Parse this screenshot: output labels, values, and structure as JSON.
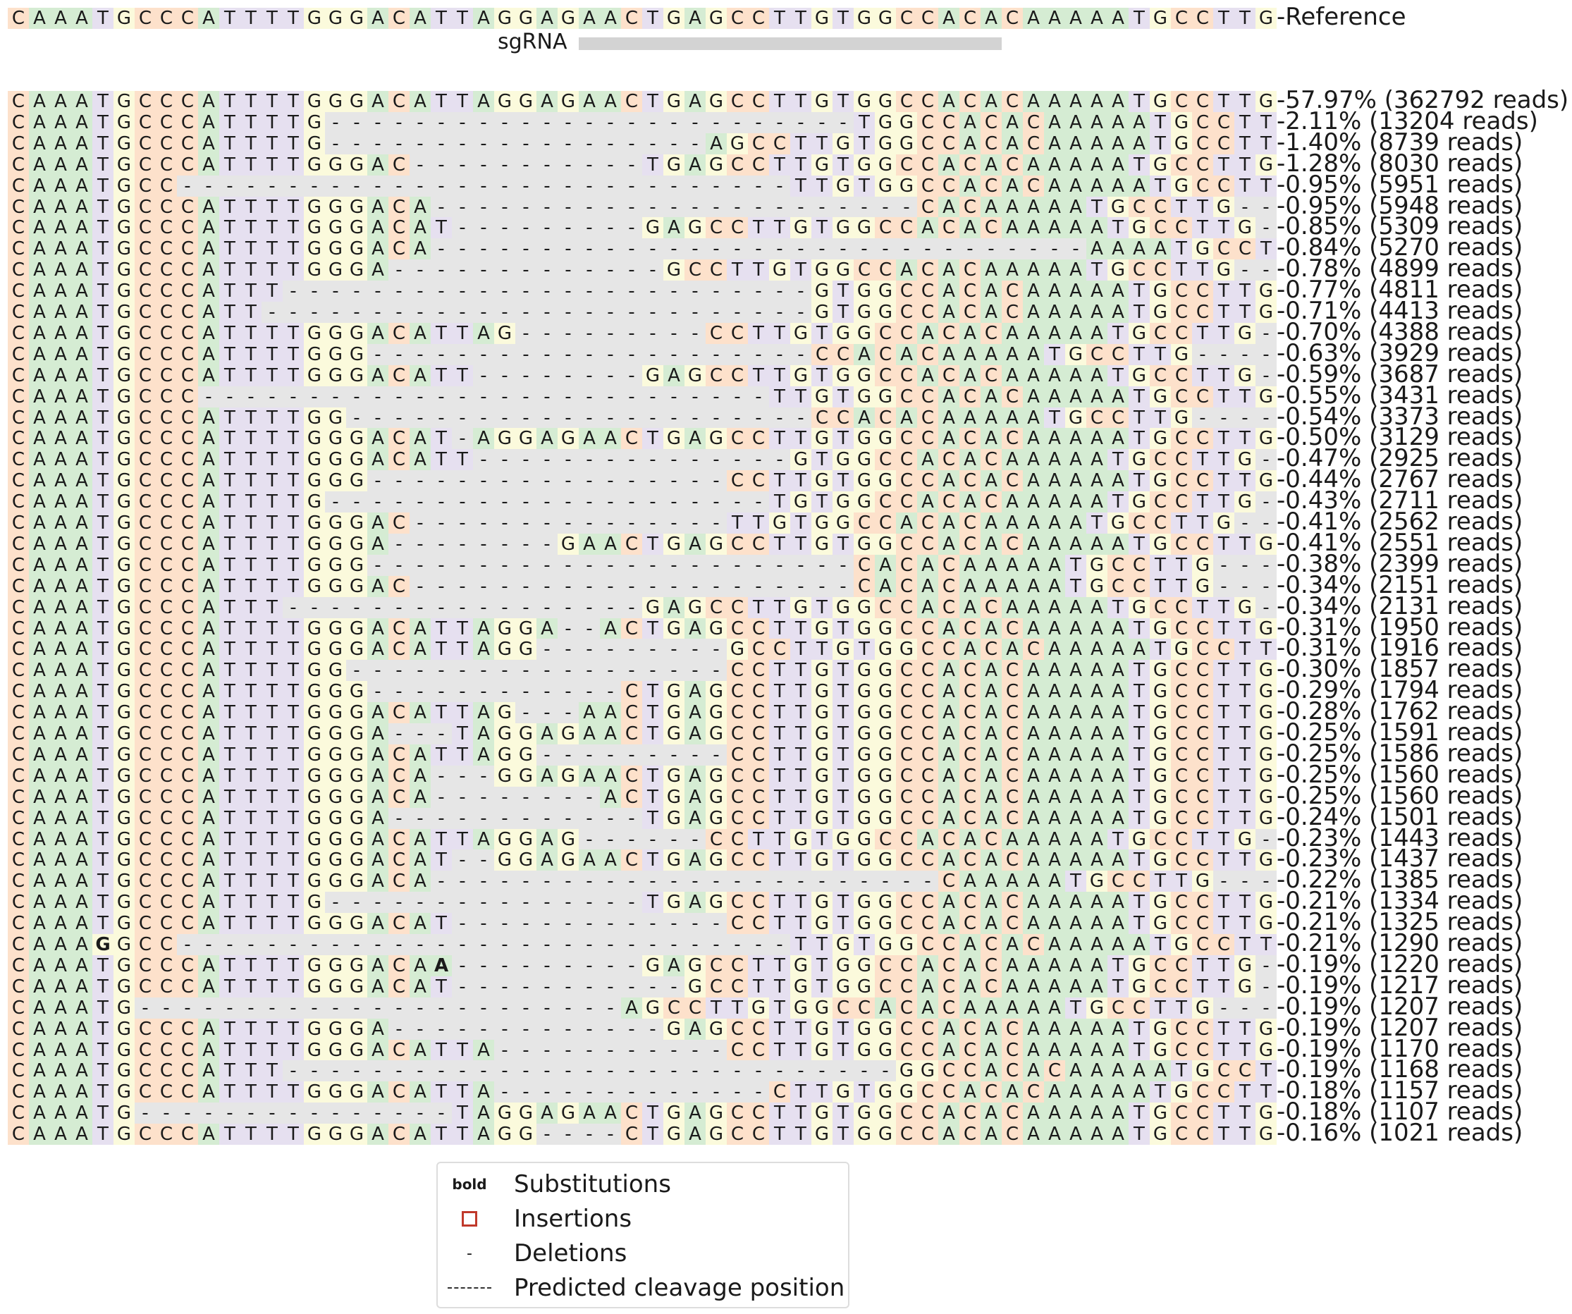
{
  "colors": {
    "A": "#d5ecd3",
    "C": "#fde1cb",
    "G": "#fbfadc",
    "T": "#e6e0f0",
    "-": "#e6e6e6",
    "cut_line": "#4a6fb5",
    "insertion": "#c0392b"
  },
  "reference": {
    "sequence": "CAAATGCCCATTTTGGGACATTAGGAGAACTGAGCCTTGTGGCCACACAAAAATGCCTTG",
    "label": "Reference"
  },
  "sgrna": {
    "label": "sgRNA"
  },
  "cut_after_index": 29,
  "alleles": [
    {
      "seq": "CAAATGCCCATTTTGGGACATTAGGAGAACTGAGCCTTGTGGCCACACAAAAATGCCTTG",
      "label": "57.97% (362792 reads)"
    },
    {
      "seq": "CAAATGCCCATTTTG-------------------------TGGCCACACAAAAATGCCTTG",
      "label": "2.11% (13204 reads)"
    },
    {
      "seq": "CAAATGCCCATTTTG------------------AGCCTTGTGGCCACACAAAAATGCCTTG",
      "label": "1.40% (8739 reads)"
    },
    {
      "seq": "CAAATGCCCATTTTGGGAC-----------TGAGCCTTGTGGCCACACAAAAATGCCTTG",
      "label": "1.28% (8030 reads)"
    },
    {
      "seq": "CAAATGCC-----------------------------TTGTGGCCACACAAAAATGCCTTG",
      "label": "0.95% (5951 reads)"
    },
    {
      "seq": "CAAATGCCCATTTTGGGACA-----------------------CACAAAAATGCCTTG",
      "label": "0.95% (5948 reads)"
    },
    {
      "seq": "CAAATGCCCATTTTGGGACAT---------GAGCCTTGTGGCCACACAAAAATGCCTTG",
      "label": "0.85% (5309 reads)"
    },
    {
      "seq": "CAAATGCCCATTTTGGGACA-------------------------------AAAATGCCTTG",
      "label": "0.84% (5270 reads)"
    },
    {
      "seq": "CAAATGCCCATTTTGGGA-------------GCCTTGTGGCCACACAAAAATGCCTTG",
      "label": "0.78% (4899 reads)"
    },
    {
      "seq": "CAAATGCCCATTT-------------------------GTGGCCACACAAAAATGCCTTG",
      "label": "0.77% (4811 reads)"
    },
    {
      "seq": "CAAATGCCCATT--------------------------GTGGCCACACAAAAATGCCTTG",
      "label": "0.71% (4413 reads)"
    },
    {
      "seq": "CAAATGCCCATTTTGGGACATTAG---------CCTTGTGGCCACACAAAAATGCCTTG",
      "label": "0.70% (4388 reads)"
    },
    {
      "seq": "CAAATGCCCATTTTGGG---------------------CCACACAAAAATGCCTTG",
      "label": "0.63% (3929 reads)"
    },
    {
      "seq": "CAAATGCCCATTTTGGGACATT--------GAGCCTTGTGGCCACACAAAAATGCCTTG",
      "label": "0.59% (3687 reads)"
    },
    {
      "seq": "CAAATGCCC---------------------------TTGTGGCCACACAAAAATGCCTTG",
      "label": "0.55% (3431 reads)"
    },
    {
      "seq": "CAAATGCCCATTTTGG----------------------CCACACAAAAATGCCTTG",
      "label": "0.54% (3373 reads)"
    },
    {
      "seq": "CAAATGCCCATTTTGGGACAT-AGGAGAACTGAGCCTTGTGGCCACACAAAAATGCCTTG",
      "label": "0.50% (3129 reads)"
    },
    {
      "seq": "CAAATGCCCATTTTGGGACATT---------------GTGGCCACACAAAAATGCCTTG",
      "label": "0.47% (2925 reads)"
    },
    {
      "seq": "CAAATGCCCATTTTGGG-----------------CCTTGTGGCCACACAAAAATGCCTTG",
      "label": "0.44% (2767 reads)"
    },
    {
      "seq": "CAAATGCCCATTTTG---------------------TGTGGCCACACAAAAATGCCTTG",
      "label": "0.43% (2711 reads)"
    },
    {
      "seq": "CAAATGCCCATTTTGGGAC---------------TTGTGGCCACACAAAAATGCCTTG",
      "label": "0.41% (2562 reads)"
    },
    {
      "seq": "CAAATGCCCATTTTGGGA--------GAACTGAGCCTTGTGGCCACACAAAAATGCCTTG",
      "label": "0.41% (2551 reads)"
    },
    {
      "seq": "CAAATGCCCATTTTGGG-----------------------CACACAAAAATGCCTTG",
      "label": "0.38% (2399 reads)"
    },
    {
      "seq": "CAAATGCCCATTTTGGGAC---------------------CACACAAAAATGCCTTG",
      "label": "0.34% (2151 reads)"
    },
    {
      "seq": "CAAATGCCCATTT-----------------GAGCCTTGTGGCCACACAAAAATGCCTTG",
      "label": "0.34% (2131 reads)"
    },
    {
      "seq": "CAAATGCCCATTTTGGGACATTAGGA--ACTGAGCCTTGTGGCCACACAAAAATGCCTTG",
      "label": "0.31% (1950 reads)"
    },
    {
      "seq": "CAAATGCCCATTTTGGGACATTAGG---------GCCTTGTGGCCACACAAAAATGCCTTG",
      "label": "0.31% (1916 reads)"
    },
    {
      "seq": "CAAATGCCCATTTTGG------------------CCTTGTGGCCACACAAAAATGCCTTG",
      "label": "0.30% (1857 reads)"
    },
    {
      "seq": "CAAATGCCCATTTTGGG------------CTGAGCCTTGTGGCCACACAAAAATGCCTTG",
      "label": "0.29% (1794 reads)"
    },
    {
      "seq": "CAAATGCCCATTTTGGGACATTAG---AACTGAGCCTTGTGGCCACACAAAAATGCCTTG",
      "label": "0.28% (1762 reads)"
    },
    {
      "seq": "CAAATGCCCATTTTGGGA---TAGGAGAACTGAGCCTTGTGGCCACACAAAAATGCCTTG",
      "label": "0.25% (1591 reads)"
    },
    {
      "seq": "CAAATGCCCATTTTGGGACATTAGG---------CCTTGTGGCCACACAAAAATGCCTTG",
      "label": "0.25% (1586 reads)"
    },
    {
      "seq": "CAAATGCCCATTTTGGGACA---GGAGAACTGAGCCTTGTGGCCACACAAAAATGCCTTG",
      "label": "0.25% (1560 reads)"
    },
    {
      "seq": "CAAATGCCCATTTTGGGACA--------ACTGAGCCTTGTGGCCACACAAAAATGCCTTG",
      "label": "0.25% (1560 reads)"
    },
    {
      "seq": "CAAATGCCCATTTTGGGA------------TGAGCCTTGTGGCCACACAAAAATGCCTTG",
      "label": "0.24% (1501 reads)"
    },
    {
      "seq": "CAAATGCCCATTTTGGGACATTAGGAG------CCTTGTGGCCACACAAAAATGCCTTG",
      "label": "0.23% (1443 reads)"
    },
    {
      "seq": "CAAATGCCCATTTTGGGACAT--GGAGAACTGAGCCTTGTGGCCACACAAAAATGCCTTG",
      "label": "0.23% (1437 reads)"
    },
    {
      "seq": "CAAATGCCCATTTTGGGACA------------------------CAAAAATGCCTTG",
      "label": "0.22% (1385 reads)"
    },
    {
      "seq": "CAAATGCCCATTTTG---------------TGAGCCTTGTGGCCACACAAAAATGCCTTG",
      "label": "0.21% (1334 reads)"
    },
    {
      "seq": "CAAATGCCCATTTTGGGACAT-------------CCTTGTGGCCACACAAAAATGCCTTG",
      "label": "0.21% (1325 reads)"
    },
    {
      "seq": "CAAAGGCC-----------------------------TTGTGGCCACACAAAAATGCCTTG",
      "label": "0.21% (1290 reads)",
      "subs": [
        4
      ]
    },
    {
      "seq": "CAAATGCCCATTTTGGGACAA---------GAGCCTTGTGGCCACACAAAAATGCCTTG",
      "label": "0.19% (1220 reads)",
      "subs": [
        20
      ]
    },
    {
      "seq": "CAAATGCCCATTTTGGGACAT-----------GCCTTGTGGCCACACAAAAATGCCTTG",
      "label": "0.19% (1217 reads)"
    },
    {
      "seq": "CAAATG-----------------------AGCCTTGTGGCCACACAAAAATGCCTTG",
      "label": "0.19% (1207 reads)"
    },
    {
      "seq": "CAAATGCCCATTTTGGGA-------------GAGCCTTGTGGCCACACAAAAATGCCTTG",
      "label": "0.19% (1207 reads)"
    },
    {
      "seq": "CAAATGCCCATTTTGGGACATTA-----------CCTTGTGGCCACACAAAAATGCCTTG",
      "label": "0.19% (1170 reads)"
    },
    {
      "seq": "CAAATGCCCATTT-----------------------------GGCCACACAAAAATGCCTTG",
      "label": "0.19% (1168 reads)"
    },
    {
      "seq": "CAAATGCCCATTTTGGGACATTA-------------CTTGTGGCCACACAAAAATGCCTTG",
      "label": "0.18% (1157 reads)"
    },
    {
      "seq": "CAAATG---------------TAGGAGAACTGAGCCTTGTGGCCACACAAAAATGCCTTG",
      "label": "0.18% (1107 reads)"
    },
    {
      "seq": "CAAATGCCCATTTTGGGACATTAGG----CTGAGCCTTGTGGCCACACAAAAATGCCTTG",
      "label": "0.16% (1021 reads)"
    }
  ],
  "legend": {
    "substitutions_symbol": "bold",
    "substitutions": "Substitutions",
    "insertions": "Insertions",
    "deletions_symbol": "-",
    "deletions": "Deletions",
    "cleavage": "Predicted cleavage position"
  }
}
